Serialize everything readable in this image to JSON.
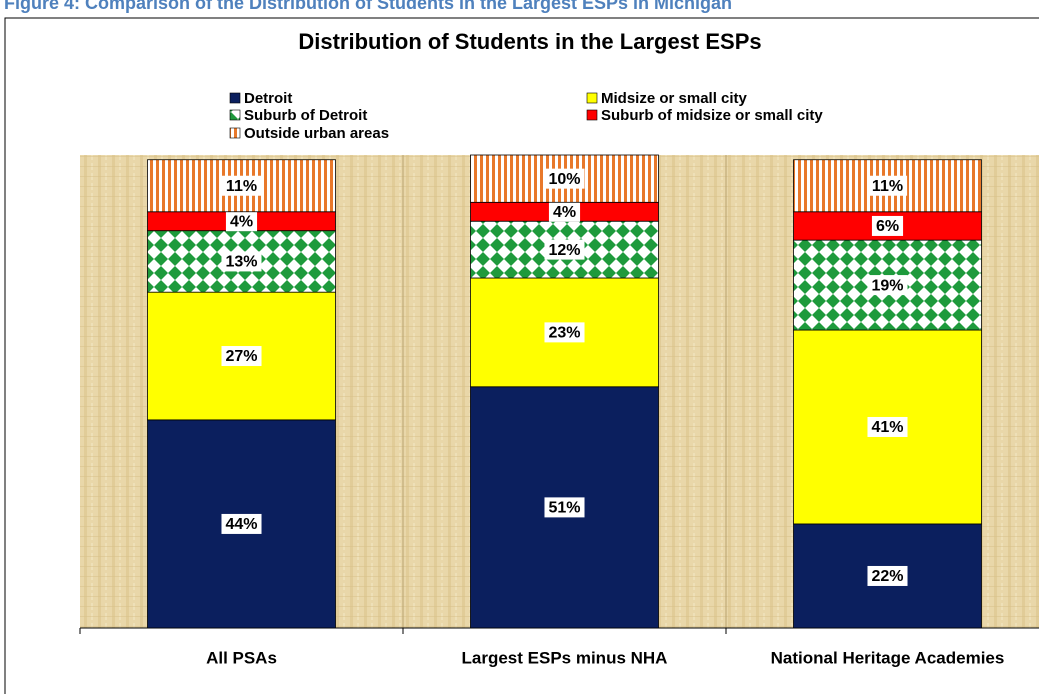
{
  "caption": "Figure 4: Comparison of the Distribution of Students in the Largest ESPs in Michigan",
  "chart_data": {
    "type": "stacked_bar",
    "title": "Distribution of Students in the Largest ESPs",
    "categories": [
      "All PSAs",
      "Largest ESPs minus NHA",
      "National Heritage Academies"
    ],
    "series": [
      {
        "name": "Detroit",
        "color": "#0b1f5e",
        "pattern": "solid",
        "values": [
          44,
          51,
          22
        ],
        "value_labels": [
          "44%",
          "51%",
          "22%"
        ]
      },
      {
        "name": "Midsize or small city",
        "color": "#ffff00",
        "pattern": "solid",
        "values": [
          27,
          23,
          41
        ],
        "value_labels": [
          "27%",
          "23%",
          "41%"
        ]
      },
      {
        "name": "Suburb of Detroit",
        "color": "#1e9a3c",
        "pattern": "diamond",
        "values": [
          13,
          12,
          19
        ],
        "value_labels": [
          "13%",
          "12%",
          "19%"
        ]
      },
      {
        "name": "Suburb of midsize or small city",
        "color": "#ff0000",
        "pattern": "solid",
        "values": [
          4,
          4,
          6
        ],
        "value_labels": [
          "4%",
          "4%",
          "6%"
        ]
      },
      {
        "name": "Outside urban areas",
        "color": "#e8782a",
        "pattern": "stripes",
        "values": [
          11,
          10,
          11
        ],
        "value_labels": [
          "11%",
          "10%",
          "11%"
        ]
      }
    ],
    "ylim": [
      0,
      100
    ]
  }
}
